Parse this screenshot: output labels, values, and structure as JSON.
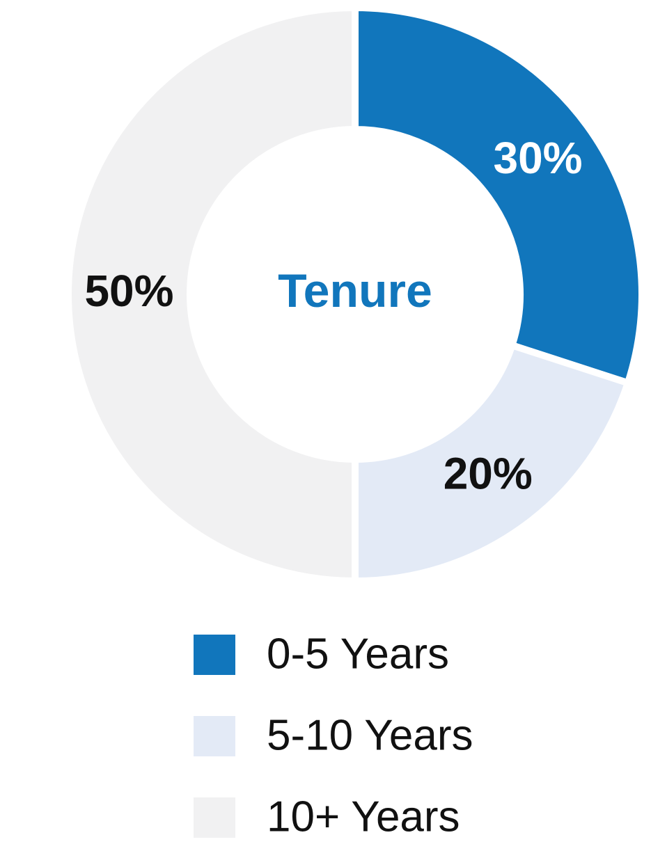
{
  "chart_data": {
    "type": "donut",
    "title": "Tenure",
    "categories": [
      "0-5 Years",
      "5-10 Years",
      "10+ Years"
    ],
    "values": [
      30,
      20,
      50
    ],
    "value_labels": [
      "30%",
      "20%",
      "50%"
    ],
    "colors": [
      "#1176bc",
      "#e3eaf6",
      "#f1f1f2"
    ],
    "label_colors": [
      "#ffffff",
      "#111111",
      "#111111"
    ],
    "title_color": "#1176bc"
  }
}
